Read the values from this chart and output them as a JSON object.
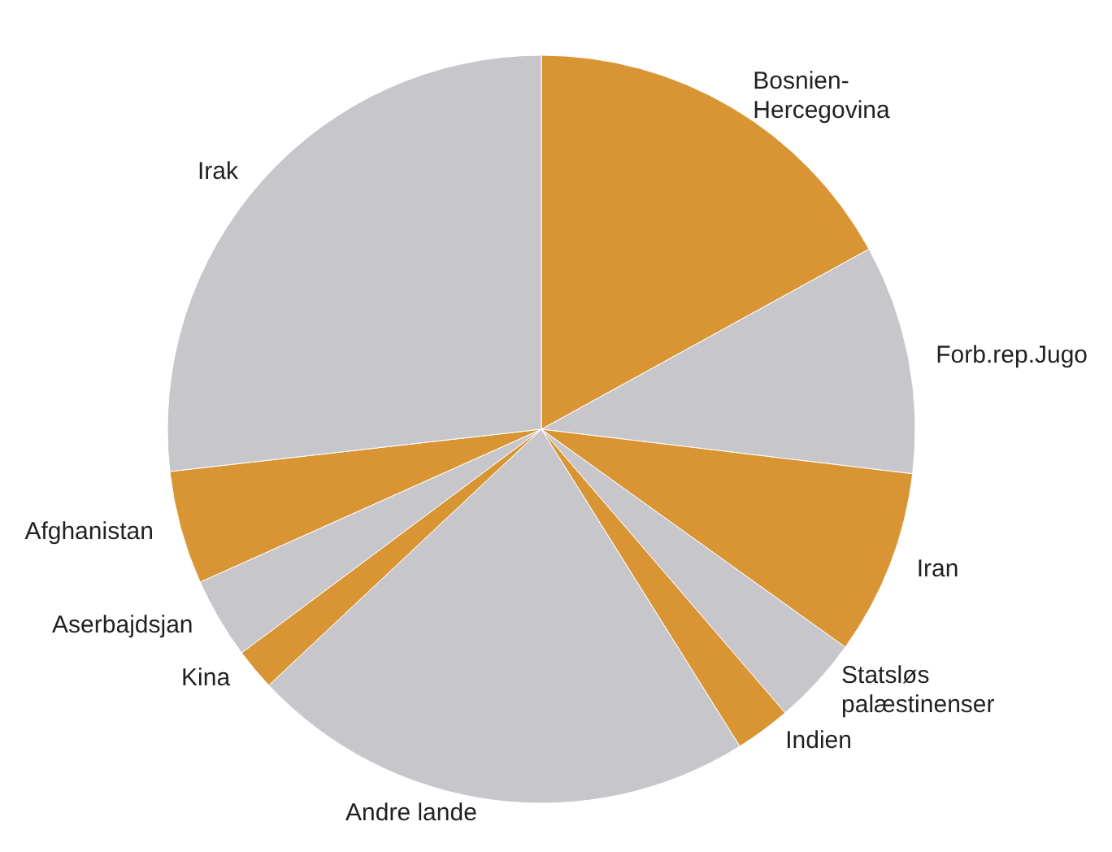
{
  "chart_data": {
    "type": "pie",
    "categories": [
      "Bosnien-\nHercegovina",
      "Forb.rep.Jugo",
      "Iran",
      "Statsløs\npalæstinenser",
      "Indien",
      "Andre lande",
      "Kina",
      "Aserbajdsjan",
      "Afghanistan",
      "Irak"
    ],
    "values": [
      17,
      9.9,
      8,
      3.8,
      2.4,
      21.9,
      1.8,
      3.5,
      4.9,
      26.8
    ],
    "colors": [
      "#d99433",
      "#c7c6cb",
      "#d99433",
      "#c7c6cb",
      "#d99433",
      "#c7c6cb",
      "#d99433",
      "#c7c6cb",
      "#d99433",
      "#c7c6cb"
    ],
    "legend": false
  }
}
